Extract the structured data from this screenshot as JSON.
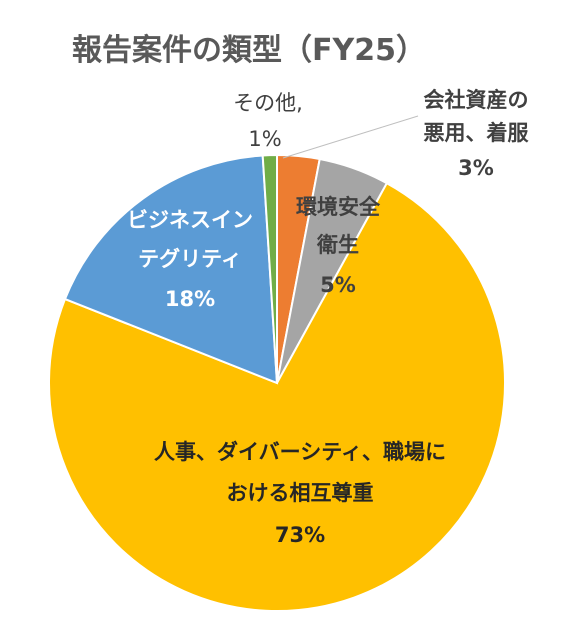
{
  "chart_data": {
    "type": "pie",
    "title": "報告案件の類型（FY25）",
    "slices": [
      {
        "label_lines": [
          "会社資産の",
          "悪用、着服"
        ],
        "percent_label": "3%",
        "value": 3,
        "color": "#ED7D31"
      },
      {
        "label_lines": [
          "環境安全",
          "衛生"
        ],
        "percent_label": "5%",
        "value": 5,
        "color": "#A5A5A5"
      },
      {
        "label_lines": [
          "人事、ダイバーシティ、職場に",
          "おける相互尊重"
        ],
        "percent_label": "73%",
        "value": 73,
        "color": "#FFC000"
      },
      {
        "label_lines": [
          "ビジネスイン",
          "テグリティ"
        ],
        "percent_label": "18%",
        "value": 18,
        "color": "#5B9BD5"
      },
      {
        "label_lines": [
          "その他,"
        ],
        "percent_label": "1%",
        "value": 1,
        "color": "#70AD47"
      }
    ],
    "start_angle_deg": 0,
    "direction": "clockwise",
    "legend": "none",
    "data_labels": "category name and percentage"
  }
}
